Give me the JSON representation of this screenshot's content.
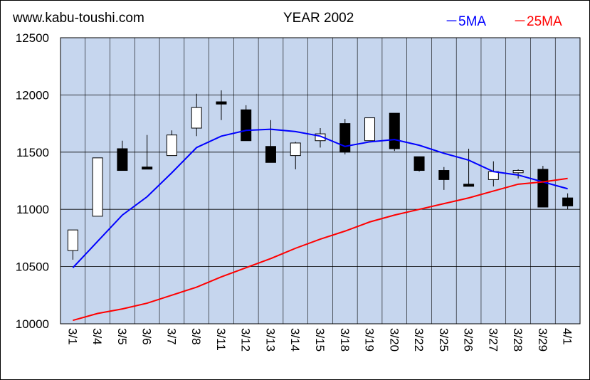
{
  "header": {
    "site": "www.kabu-toushi.com",
    "title": "YEAR 2002"
  },
  "colors": {
    "plot_background": "#c6d6ee",
    "grid": "#000000",
    "ma5": "#0000ff",
    "ma25": "#ff0000",
    "up_candle": "#ffffff",
    "down_candle": "#000000"
  },
  "chart_data": {
    "type": "candlestick",
    "ylim": [
      10000,
      12500
    ],
    "yticks": [
      10000,
      10500,
      11000,
      11500,
      12000,
      12500
    ],
    "grid": true,
    "legend": "top-right",
    "legend_entries": [
      "－5MA",
      "－25MA"
    ],
    "categories": [
      "3/1",
      "3/4",
      "3/5",
      "3/6",
      "3/7",
      "3/8",
      "3/11",
      "3/12",
      "3/13",
      "3/14",
      "3/15",
      "3/18",
      "3/19",
      "3/20",
      "3/22",
      "3/25",
      "3/26",
      "3/27",
      "3/28",
      "3/29",
      "4/1"
    ],
    "candles": [
      {
        "open": 10640,
        "high": 10820,
        "low": 10560,
        "close": 10820
      },
      {
        "open": 10940,
        "high": 11450,
        "low": 10940,
        "close": 11450
      },
      {
        "open": 11530,
        "high": 11600,
        "low": 11340,
        "close": 11340
      },
      {
        "open": 11370,
        "high": 11650,
        "low": 11350,
        "close": 11360
      },
      {
        "open": 11470,
        "high": 11690,
        "low": 11470,
        "close": 11650
      },
      {
        "open": 11710,
        "high": 12010,
        "low": 11640,
        "close": 11890
      },
      {
        "open": 11940,
        "high": 12040,
        "low": 11780,
        "close": 11920
      },
      {
        "open": 11870,
        "high": 11910,
        "low": 11600,
        "close": 11600
      },
      {
        "open": 11550,
        "high": 11780,
        "low": 11410,
        "close": 11410
      },
      {
        "open": 11470,
        "high": 11590,
        "low": 11350,
        "close": 11580
      },
      {
        "open": 11600,
        "high": 11710,
        "low": 11540,
        "close": 11660
      },
      {
        "open": 11750,
        "high": 11790,
        "low": 11480,
        "close": 11500
      },
      {
        "open": 11600,
        "high": 11800,
        "low": 11600,
        "close": 11800
      },
      {
        "open": 11840,
        "high": 11840,
        "low": 11510,
        "close": 11530
      },
      {
        "open": 11460,
        "high": 11460,
        "low": 11330,
        "close": 11340
      },
      {
        "open": 11340,
        "high": 11370,
        "low": 11170,
        "close": 11260
      },
      {
        "open": 11220,
        "high": 11530,
        "low": 11200,
        "close": 11210
      },
      {
        "open": 11260,
        "high": 11420,
        "low": 11200,
        "close": 11330
      },
      {
        "open": 11320,
        "high": 11350,
        "low": 11270,
        "close": 11340
      },
      {
        "open": 11350,
        "high": 11380,
        "low": 11020,
        "close": 11020
      },
      {
        "open": 11100,
        "high": 11140,
        "low": 11000,
        "close": 11030
      }
    ],
    "series": [
      {
        "name": "5MA",
        "values": [
          10490,
          10720,
          10950,
          11110,
          11320,
          11540,
          11640,
          11690,
          11700,
          11680,
          11640,
          11550,
          11590,
          11610,
          11560,
          11490,
          11430,
          11330,
          11300,
          11240,
          11180
        ]
      },
      {
        "name": "25MA",
        "values": [
          10030,
          10090,
          10130,
          10180,
          10250,
          10320,
          10410,
          10490,
          10570,
          10660,
          10740,
          10810,
          10890,
          10950,
          11000,
          11050,
          11100,
          11160,
          11220,
          11240,
          11270
        ]
      }
    ]
  }
}
